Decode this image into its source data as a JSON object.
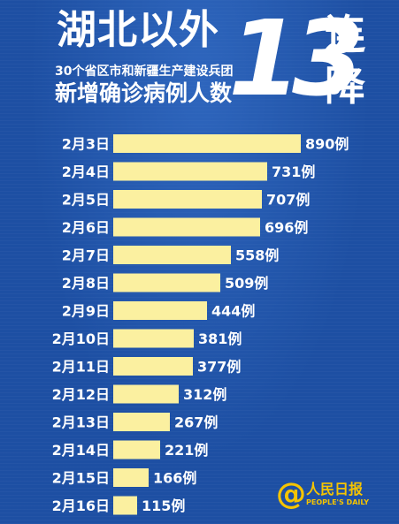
{
  "header": {
    "title_main": "湖北以外",
    "title_sub": "30个省区市和新疆生产建设兵团",
    "title_metric": "新增确诊病例人数",
    "streak_number": "13",
    "streak_chars": [
      "连",
      "降"
    ]
  },
  "logo": {
    "symbol": "@",
    "name": "人民日报",
    "english": "PEOPLE'S DAILY"
  },
  "colors": {
    "background": "#1d4fa3",
    "bar": "#fbf0a0",
    "text": "#ffffff",
    "logo": "#f5c400"
  },
  "chart_data": {
    "type": "bar",
    "orientation": "horizontal",
    "categories": [
      "2月3日",
      "2月4日",
      "2月5日",
      "2月6日",
      "2月7日",
      "2月8日",
      "2月9日",
      "2月10日",
      "2月11日",
      "2月12日",
      "2月13日",
      "2月14日",
      "2月15日",
      "2月16日"
    ],
    "values": [
      890,
      731,
      707,
      696,
      558,
      509,
      444,
      381,
      377,
      312,
      267,
      221,
      166,
      115
    ],
    "value_labels": [
      "890例",
      "731例",
      "707例",
      "696例",
      "558例",
      "509例",
      "444例",
      "381例",
      "377例",
      "312例",
      "267例",
      "221例",
      "166例",
      "115例"
    ],
    "xlim": [
      0,
      890
    ],
    "grid": false,
    "legend": "none"
  }
}
